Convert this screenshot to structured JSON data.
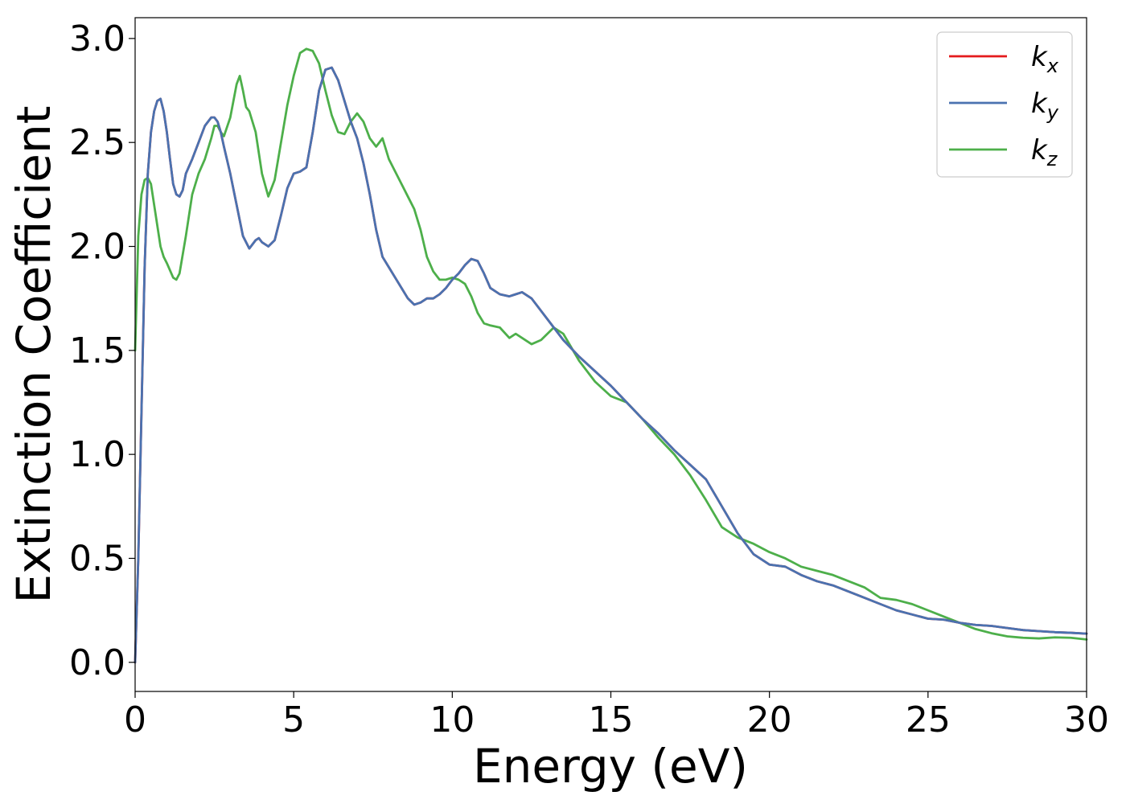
{
  "chart_data": {
    "type": "line",
    "title": "",
    "xlabel": "Energy (eV)",
    "ylabel": "Extinction Coefficient",
    "xlim": [
      0,
      30
    ],
    "ylim": [
      -0.14,
      3.1
    ],
    "xticks": [
      0,
      5,
      10,
      15,
      20,
      25,
      30
    ],
    "xtick_labels": [
      "0",
      "5",
      "10",
      "15",
      "20",
      "25",
      "30"
    ],
    "yticks": [
      0.0,
      0.5,
      1.0,
      1.5,
      2.0,
      2.5,
      3.0
    ],
    "ytick_labels": [
      "0.0",
      "0.5",
      "1.0",
      "1.5",
      "2.0",
      "2.5",
      "3.0"
    ],
    "grid": false,
    "legend_position": "top-right",
    "series": [
      {
        "name": "k",
        "subscript": "x",
        "color": "#e41a1c",
        "x": [
          0,
          0.1,
          0.2,
          0.3,
          0.4,
          0.5,
          0.6,
          0.7,
          0.8,
          0.9,
          1.0,
          1.1,
          1.2,
          1.3,
          1.4,
          1.5,
          1.6,
          1.8,
          2.0,
          2.2,
          2.4,
          2.5,
          2.6,
          2.7,
          2.8,
          3.0,
          3.2,
          3.4,
          3.6,
          3.8,
          3.9,
          4.0,
          4.2,
          4.4,
          4.6,
          4.8,
          5.0,
          5.2,
          5.4,
          5.6,
          5.8,
          6.0,
          6.2,
          6.4,
          6.6,
          6.8,
          7.0,
          7.2,
          7.4,
          7.6,
          7.8,
          8.0,
          8.2,
          8.4,
          8.6,
          8.8,
          9.0,
          9.2,
          9.4,
          9.6,
          9.8,
          10.0,
          10.2,
          10.4,
          10.6,
          10.8,
          11.0,
          11.2,
          11.5,
          11.8,
          12.0,
          12.2,
          12.5,
          12.8,
          13.0,
          13.5,
          14.0,
          14.5,
          15.0,
          15.5,
          16.0,
          16.5,
          17.0,
          17.5,
          18.0,
          18.5,
          19.0,
          19.5,
          20.0,
          20.5,
          21.0,
          21.5,
          22.0,
          22.5,
          23.0,
          23.5,
          24.0,
          24.5,
          25.0,
          25.5,
          26.0,
          26.5,
          27.0,
          27.5,
          28.0,
          28.5,
          29.0,
          29.5,
          30.0
        ],
        "y": [
          0.0,
          0.5,
          1.2,
          1.9,
          2.35,
          2.55,
          2.65,
          2.7,
          2.71,
          2.65,
          2.55,
          2.42,
          2.3,
          2.25,
          2.24,
          2.27,
          2.35,
          2.42,
          2.5,
          2.58,
          2.62,
          2.62,
          2.6,
          2.55,
          2.48,
          2.35,
          2.2,
          2.05,
          1.99,
          2.03,
          2.04,
          2.02,
          2.0,
          2.03,
          2.15,
          2.28,
          2.35,
          2.36,
          2.38,
          2.55,
          2.75,
          2.85,
          2.86,
          2.8,
          2.7,
          2.6,
          2.52,
          2.4,
          2.25,
          2.08,
          1.95,
          1.9,
          1.85,
          1.8,
          1.75,
          1.72,
          1.73,
          1.75,
          1.75,
          1.77,
          1.8,
          1.84,
          1.87,
          1.91,
          1.94,
          1.93,
          1.87,
          1.8,
          1.77,
          1.76,
          1.77,
          1.78,
          1.75,
          1.69,
          1.65,
          1.55,
          1.47,
          1.4,
          1.33,
          1.25,
          1.17,
          1.1,
          1.02,
          0.95,
          0.88,
          0.75,
          0.62,
          0.52,
          0.47,
          0.46,
          0.42,
          0.39,
          0.37,
          0.34,
          0.31,
          0.28,
          0.25,
          0.23,
          0.21,
          0.205,
          0.19,
          0.18,
          0.175,
          0.165,
          0.155,
          0.15,
          0.145,
          0.142,
          0.138
        ]
      },
      {
        "name": "k",
        "subscript": "y",
        "color": "#4a72b0",
        "x": [
          0,
          0.1,
          0.2,
          0.3,
          0.4,
          0.5,
          0.6,
          0.7,
          0.8,
          0.9,
          1.0,
          1.1,
          1.2,
          1.3,
          1.4,
          1.5,
          1.6,
          1.8,
          2.0,
          2.2,
          2.4,
          2.5,
          2.6,
          2.7,
          2.8,
          3.0,
          3.2,
          3.4,
          3.6,
          3.8,
          3.9,
          4.0,
          4.2,
          4.4,
          4.6,
          4.8,
          5.0,
          5.2,
          5.4,
          5.6,
          5.8,
          6.0,
          6.2,
          6.4,
          6.6,
          6.8,
          7.0,
          7.2,
          7.4,
          7.6,
          7.8,
          8.0,
          8.2,
          8.4,
          8.6,
          8.8,
          9.0,
          9.2,
          9.4,
          9.6,
          9.8,
          10.0,
          10.2,
          10.4,
          10.6,
          10.8,
          11.0,
          11.2,
          11.5,
          11.8,
          12.0,
          12.2,
          12.5,
          12.8,
          13.0,
          13.5,
          14.0,
          14.5,
          15.0,
          15.5,
          16.0,
          16.5,
          17.0,
          17.5,
          18.0,
          18.5,
          19.0,
          19.5,
          20.0,
          20.5,
          21.0,
          21.5,
          22.0,
          22.5,
          23.0,
          23.5,
          24.0,
          24.5,
          25.0,
          25.5,
          26.0,
          26.5,
          27.0,
          27.5,
          28.0,
          28.5,
          29.0,
          29.5,
          30.0
        ],
        "y": [
          0.0,
          0.5,
          1.2,
          1.9,
          2.35,
          2.55,
          2.65,
          2.7,
          2.71,
          2.65,
          2.55,
          2.42,
          2.3,
          2.25,
          2.24,
          2.27,
          2.35,
          2.42,
          2.5,
          2.58,
          2.62,
          2.62,
          2.6,
          2.55,
          2.48,
          2.35,
          2.2,
          2.05,
          1.99,
          2.03,
          2.04,
          2.02,
          2.0,
          2.03,
          2.15,
          2.28,
          2.35,
          2.36,
          2.38,
          2.55,
          2.75,
          2.85,
          2.86,
          2.8,
          2.7,
          2.6,
          2.52,
          2.4,
          2.25,
          2.08,
          1.95,
          1.9,
          1.85,
          1.8,
          1.75,
          1.72,
          1.73,
          1.75,
          1.75,
          1.77,
          1.8,
          1.84,
          1.87,
          1.91,
          1.94,
          1.93,
          1.87,
          1.8,
          1.77,
          1.76,
          1.77,
          1.78,
          1.75,
          1.69,
          1.65,
          1.55,
          1.47,
          1.4,
          1.33,
          1.25,
          1.17,
          1.1,
          1.02,
          0.95,
          0.88,
          0.75,
          0.62,
          0.52,
          0.47,
          0.46,
          0.42,
          0.39,
          0.37,
          0.34,
          0.31,
          0.28,
          0.25,
          0.23,
          0.21,
          0.205,
          0.19,
          0.18,
          0.175,
          0.165,
          0.155,
          0.15,
          0.145,
          0.142,
          0.138
        ]
      },
      {
        "name": "k",
        "subscript": "z",
        "color": "#4daf4a",
        "x": [
          0,
          0.1,
          0.2,
          0.3,
          0.4,
          0.5,
          0.6,
          0.8,
          0.9,
          1.0,
          1.2,
          1.3,
          1.4,
          1.6,
          1.8,
          2.0,
          2.2,
          2.4,
          2.5,
          2.6,
          2.7,
          2.8,
          3.0,
          3.2,
          3.3,
          3.4,
          3.5,
          3.6,
          3.8,
          4.0,
          4.2,
          4.4,
          4.6,
          4.8,
          5.0,
          5.2,
          5.4,
          5.6,
          5.8,
          6.0,
          6.2,
          6.4,
          6.6,
          6.8,
          7.0,
          7.2,
          7.4,
          7.6,
          7.8,
          8.0,
          8.2,
          8.4,
          8.6,
          8.8,
          9.0,
          9.2,
          9.4,
          9.6,
          9.8,
          10.0,
          10.2,
          10.4,
          10.6,
          10.8,
          11.0,
          11.2,
          11.5,
          11.8,
          12.0,
          12.2,
          12.5,
          12.8,
          13.0,
          13.2,
          13.5,
          14.0,
          14.5,
          15.0,
          15.5,
          16.0,
          16.5,
          17.0,
          17.5,
          18.0,
          18.5,
          19.0,
          19.5,
          20.0,
          20.5,
          21.0,
          21.5,
          22.0,
          22.5,
          23.0,
          23.5,
          24.0,
          24.5,
          25.0,
          25.5,
          26.0,
          26.5,
          27.0,
          27.5,
          28.0,
          28.5,
          29.0,
          29.5,
          30.0
        ],
        "y": [
          1.5,
          2.05,
          2.25,
          2.32,
          2.33,
          2.3,
          2.2,
          2.0,
          1.95,
          1.92,
          1.85,
          1.84,
          1.87,
          2.05,
          2.25,
          2.35,
          2.42,
          2.52,
          2.58,
          2.58,
          2.55,
          2.53,
          2.62,
          2.78,
          2.82,
          2.75,
          2.67,
          2.65,
          2.55,
          2.35,
          2.24,
          2.32,
          2.5,
          2.68,
          2.82,
          2.93,
          2.95,
          2.94,
          2.88,
          2.75,
          2.63,
          2.55,
          2.54,
          2.6,
          2.64,
          2.6,
          2.52,
          2.48,
          2.52,
          2.42,
          2.36,
          2.3,
          2.24,
          2.18,
          2.08,
          1.95,
          1.88,
          1.84,
          1.84,
          1.85,
          1.84,
          1.82,
          1.76,
          1.68,
          1.63,
          1.62,
          1.61,
          1.56,
          1.58,
          1.56,
          1.53,
          1.55,
          1.58,
          1.61,
          1.58,
          1.45,
          1.35,
          1.28,
          1.25,
          1.17,
          1.08,
          1.0,
          0.9,
          0.78,
          0.65,
          0.6,
          0.57,
          0.53,
          0.5,
          0.46,
          0.44,
          0.42,
          0.39,
          0.36,
          0.31,
          0.3,
          0.28,
          0.25,
          0.22,
          0.19,
          0.16,
          0.14,
          0.125,
          0.118,
          0.115,
          0.12,
          0.118,
          0.11
        ]
      }
    ]
  }
}
